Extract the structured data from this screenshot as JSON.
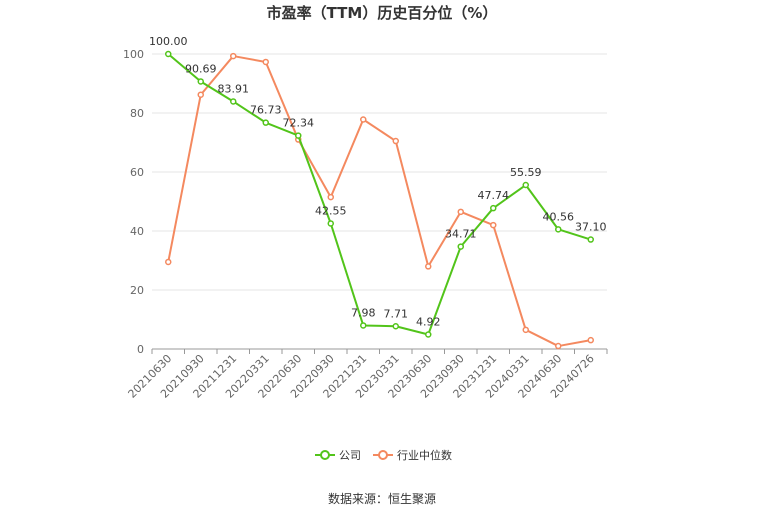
{
  "chart_data": {
    "type": "line",
    "title": "市盈率（TTM）历史百分位（%）",
    "categories": [
      "20210630",
      "20210930",
      "20211231",
      "20220331",
      "20220630",
      "20220930",
      "20221231",
      "20230331",
      "20230630",
      "20230930",
      "20231231",
      "20240331",
      "20240630",
      "20240726"
    ],
    "ylim": [
      0,
      100
    ],
    "yticks": [
      0,
      20,
      40,
      60,
      80,
      100
    ],
    "grid": true,
    "legend_position": "bottom",
    "series": [
      {
        "name": "公司",
        "color": "#52c41a",
        "values": [
          100.0,
          90.69,
          83.91,
          76.73,
          72.34,
          42.55,
          7.98,
          7.71,
          4.92,
          34.71,
          47.74,
          55.59,
          40.56,
          37.1
        ],
        "labels": [
          "100.00",
          "90.69",
          "83.91",
          "76.73",
          "72.34",
          "42.55",
          "7.98",
          "7.71",
          "4.92",
          "34.71",
          "47.74",
          "55.59",
          "40.56",
          "37.10"
        ]
      },
      {
        "name": "行业中位数",
        "color": "#f4895f",
        "values": [
          29.5,
          86.2,
          99.3,
          97.3,
          71.0,
          51.5,
          77.8,
          70.5,
          28.0,
          46.5,
          42.0,
          6.5,
          1.0,
          3.0
        ]
      }
    ],
    "source": "数据来源：恒生聚源"
  }
}
